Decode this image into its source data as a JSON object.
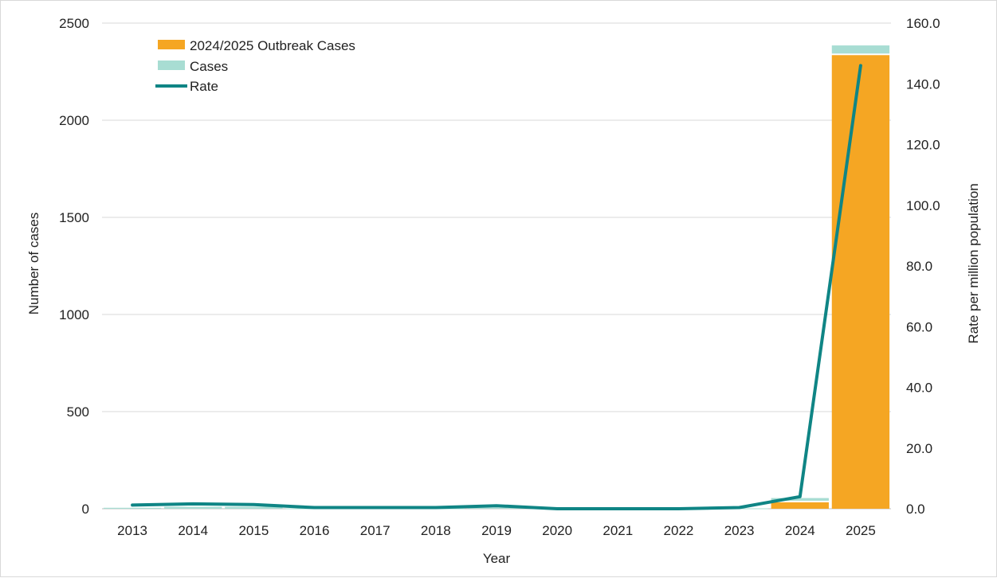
{
  "chart_data": {
    "type": "bar",
    "categories": [
      "2013",
      "2014",
      "2015",
      "2016",
      "2017",
      "2018",
      "2019",
      "2020",
      "2021",
      "2022",
      "2023",
      "2024",
      "2025"
    ],
    "series": [
      {
        "name": "2024/2025 Outbreak Cases",
        "kind": "bar",
        "axis": "left",
        "color": "#f5a623",
        "values": [
          0,
          0,
          0,
          0,
          0,
          0,
          0,
          0,
          0,
          0,
          0,
          33,
          2335
        ]
      },
      {
        "name": "Cases",
        "kind": "bar",
        "axis": "left",
        "color": "#a8ddd3",
        "values": [
          5,
          10,
          10,
          2,
          2,
          2,
          5,
          0,
          0,
          0,
          2,
          22,
          50
        ]
      },
      {
        "name": "Rate",
        "kind": "line",
        "axis": "right",
        "color": "#0f8585",
        "values": [
          1.2,
          1.6,
          1.4,
          0.4,
          0.4,
          0.4,
          1.0,
          0.0,
          0.0,
          0.0,
          0.4,
          4.0,
          146.0
        ]
      }
    ],
    "xlabel": "Year",
    "ylabel": "Number of cases",
    "y2label": "Rate per million population",
    "ylim": [
      0,
      2500
    ],
    "y2lim": [
      0,
      160
    ],
    "yticks": [
      "0",
      "500",
      "1000",
      "1500",
      "2000",
      "2500"
    ],
    "y2ticks": [
      "0.0",
      "20.0",
      "40.0",
      "60.0",
      "80.0",
      "100.0",
      "120.0",
      "140.0",
      "160.0"
    ],
    "grid": true,
    "legend": "top-left"
  }
}
